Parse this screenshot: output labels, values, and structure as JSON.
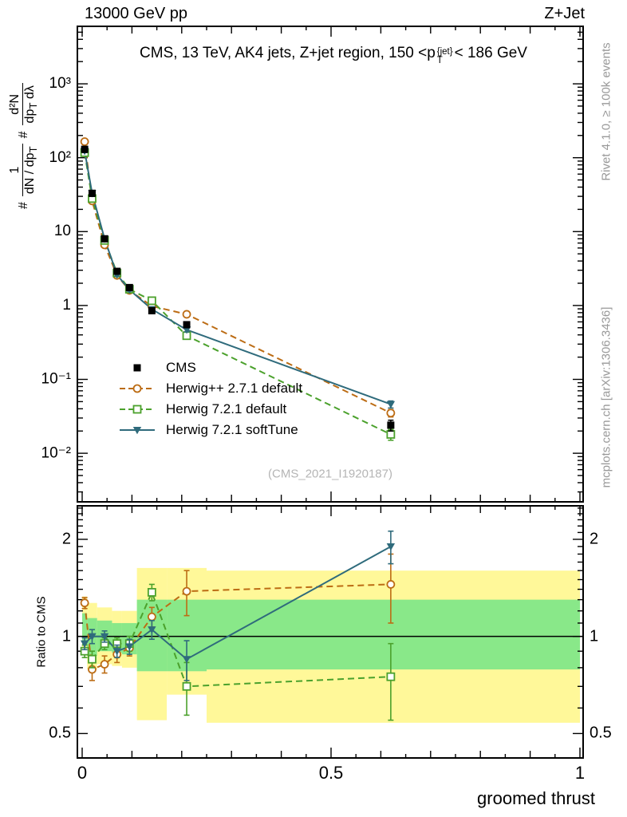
{
  "header": {
    "left": "13000 GeV pp",
    "right": "Z+Jet"
  },
  "title": {
    "pre": "CMS, 13 TeV, AK4 jets, Z+jet region, 150 <p",
    "sup": "{jet}",
    "sub": "T",
    "post": "< 186 GeV"
  },
  "ylabel_main": {
    "hash1": "#",
    "frac1_num": "1",
    "frac1_den_main": "dN / dp",
    "frac1_den_sub": "T",
    "hash2": "#",
    "frac2_num": "d²N",
    "frac2_den_main": "dp",
    "frac2_den_sub": "T",
    "frac2_den_tail": " dλ"
  },
  "ylabel_ratio": "Ratio to CMS",
  "xlabel": "groomed thrust",
  "watermark": "(CMS_2021_I1920187)",
  "side_notes": {
    "top_right": "Rivet 4.1.0, ≥ 100k events",
    "bottom_right": "mcplots.cern.ch [arXiv:1306.3436]"
  },
  "colors": {
    "frame": "#000000",
    "band_yellow": "#fff899",
    "band_green": "#89e889",
    "note_gray": "#999999",
    "watermark_gray": "#b5b5b5"
  },
  "chart_data": {
    "type": "line",
    "title": "CMS, 13 TeV, AK4 jets, Z+jet region, 150 < pT{jet} < 186 GeV",
    "xlabel": "groomed thrust",
    "ylabel": "1/(dN/dpT) d²N/(dpT dλ)",
    "x_range": [
      0,
      1
    ],
    "y_range_main": [
      0.0022,
      6000
    ],
    "y_scale_main": "log",
    "y_range_ratio": [
      0.42,
      2.54
    ],
    "y_scale_ratio": "log",
    "ratio_label": "Ratio to CMS",
    "legend_position": "middle-left",
    "grid": false,
    "x_ticks": [
      {
        "v": 0,
        "label": "0"
      },
      {
        "v": 0.5,
        "label": "0.5"
      },
      {
        "v": 1,
        "label": "1"
      }
    ],
    "y_ticks_main": [
      {
        "v": 0.01,
        "label": "10⁻²"
      },
      {
        "v": 0.1,
        "label": "10⁻¹"
      },
      {
        "v": 1,
        "label": "1"
      },
      {
        "v": 10,
        "label": "10"
      },
      {
        "v": 100,
        "label": "10²"
      },
      {
        "v": 1000,
        "label": "10³"
      }
    ],
    "y_ticks_ratio": [
      {
        "v": 0.5,
        "label": "0.5"
      },
      {
        "v": 1,
        "label": "1"
      },
      {
        "v": 2,
        "label": "2"
      }
    ],
    "x": [
      0.005,
      0.02,
      0.045,
      0.07,
      0.095,
      0.14,
      0.21,
      0.62
    ],
    "series": [
      {
        "name": "CMS",
        "color": "#000000",
        "marker": "square",
        "fill": "filled",
        "line": "none",
        "values": [
          130,
          33,
          8.0,
          2.9,
          1.75,
          0.85,
          0.55,
          0.024
        ],
        "yerr": [
          12,
          3,
          0.7,
          0.25,
          0.15,
          0.07,
          0.05,
          0.004
        ]
      },
      {
        "name": "Herwig++ 2.7.1 default",
        "color": "#bc6c14",
        "marker": "circle",
        "fill": "open",
        "line": "dashed",
        "values": [
          165,
          26,
          6.6,
          2.55,
          1.6,
          0.98,
          0.76,
          0.035
        ],
        "yerr": [
          6,
          1,
          0.25,
          0.1,
          0.07,
          0.05,
          0.04,
          0.004
        ]
      },
      {
        "name": "Herwig 7.2.1 default",
        "color": "#4ba12c",
        "marker": "square",
        "fill": "open",
        "line": "dashed",
        "values": [
          117,
          28,
          7.6,
          2.75,
          1.66,
          1.16,
          0.39,
          0.018
        ],
        "yerr": [
          5,
          1,
          0.25,
          0.1,
          0.07,
          0.05,
          0.03,
          0.003
        ]
      },
      {
        "name": "Herwig 7.2.1 softTune",
        "color": "#2f6b7c",
        "marker": "triangle-down",
        "fill": "filled",
        "line": "solid",
        "values": [
          123,
          33,
          8.0,
          2.6,
          1.63,
          0.89,
          0.47,
          0.046
        ],
        "yerr": [
          5,
          1,
          0.25,
          0.1,
          0.07,
          0.05,
          0.03,
          0.005
        ]
      }
    ],
    "ratio": {
      "baseline": 1,
      "series": [
        {
          "name": "Herwig++ 2.7.1 default",
          "values": [
            1.27,
            0.79,
            0.82,
            0.88,
            0.92,
            1.15,
            1.38,
            1.45
          ],
          "yerr": [
            0.05,
            0.06,
            0.05,
            0.05,
            0.05,
            0.08,
            0.22,
            0.35
          ]
        },
        {
          "name": "Herwig 7.2.1 default",
          "values": [
            0.9,
            0.85,
            0.95,
            0.95,
            0.95,
            1.37,
            0.7,
            0.75
          ],
          "yerr": [
            0.04,
            0.05,
            0.04,
            0.04,
            0.05,
            0.08,
            0.13,
            0.2
          ]
        },
        {
          "name": "Herwig 7.2.1 softTune",
          "values": [
            0.95,
            1.0,
            1.0,
            0.9,
            0.93,
            1.05,
            0.85,
            1.9
          ],
          "yerr": [
            0.04,
            0.05,
            0.04,
            0.04,
            0.05,
            0.07,
            0.12,
            0.22
          ]
        }
      ],
      "bands": [
        {
          "x0": 0.0,
          "x1": 0.01,
          "yellow": [
            0.88,
            1.33
          ],
          "green": [
            0.94,
            1.18
          ]
        },
        {
          "x0": 0.01,
          "x1": 0.03,
          "yellow": [
            0.79,
            1.27
          ],
          "green": [
            0.87,
            1.14
          ]
        },
        {
          "x0": 0.03,
          "x1": 0.06,
          "yellow": [
            0.82,
            1.23
          ],
          "green": [
            0.9,
            1.12
          ]
        },
        {
          "x0": 0.06,
          "x1": 0.08,
          "yellow": [
            0.81,
            1.2
          ],
          "green": [
            0.89,
            1.1
          ]
        },
        {
          "x0": 0.08,
          "x1": 0.11,
          "yellow": [
            0.8,
            1.2
          ],
          "green": [
            0.88,
            1.1
          ]
        },
        {
          "x0": 0.11,
          "x1": 0.17,
          "yellow": [
            0.55,
            1.63
          ],
          "green": [
            0.78,
            1.3
          ]
        },
        {
          "x0": 0.17,
          "x1": 0.25,
          "yellow": [
            0.66,
            1.63
          ],
          "green": [
            0.78,
            1.3
          ]
        },
        {
          "x0": 0.25,
          "x1": 1.0,
          "yellow": [
            0.54,
            1.6
          ],
          "green": [
            0.79,
            1.3
          ]
        }
      ]
    }
  }
}
